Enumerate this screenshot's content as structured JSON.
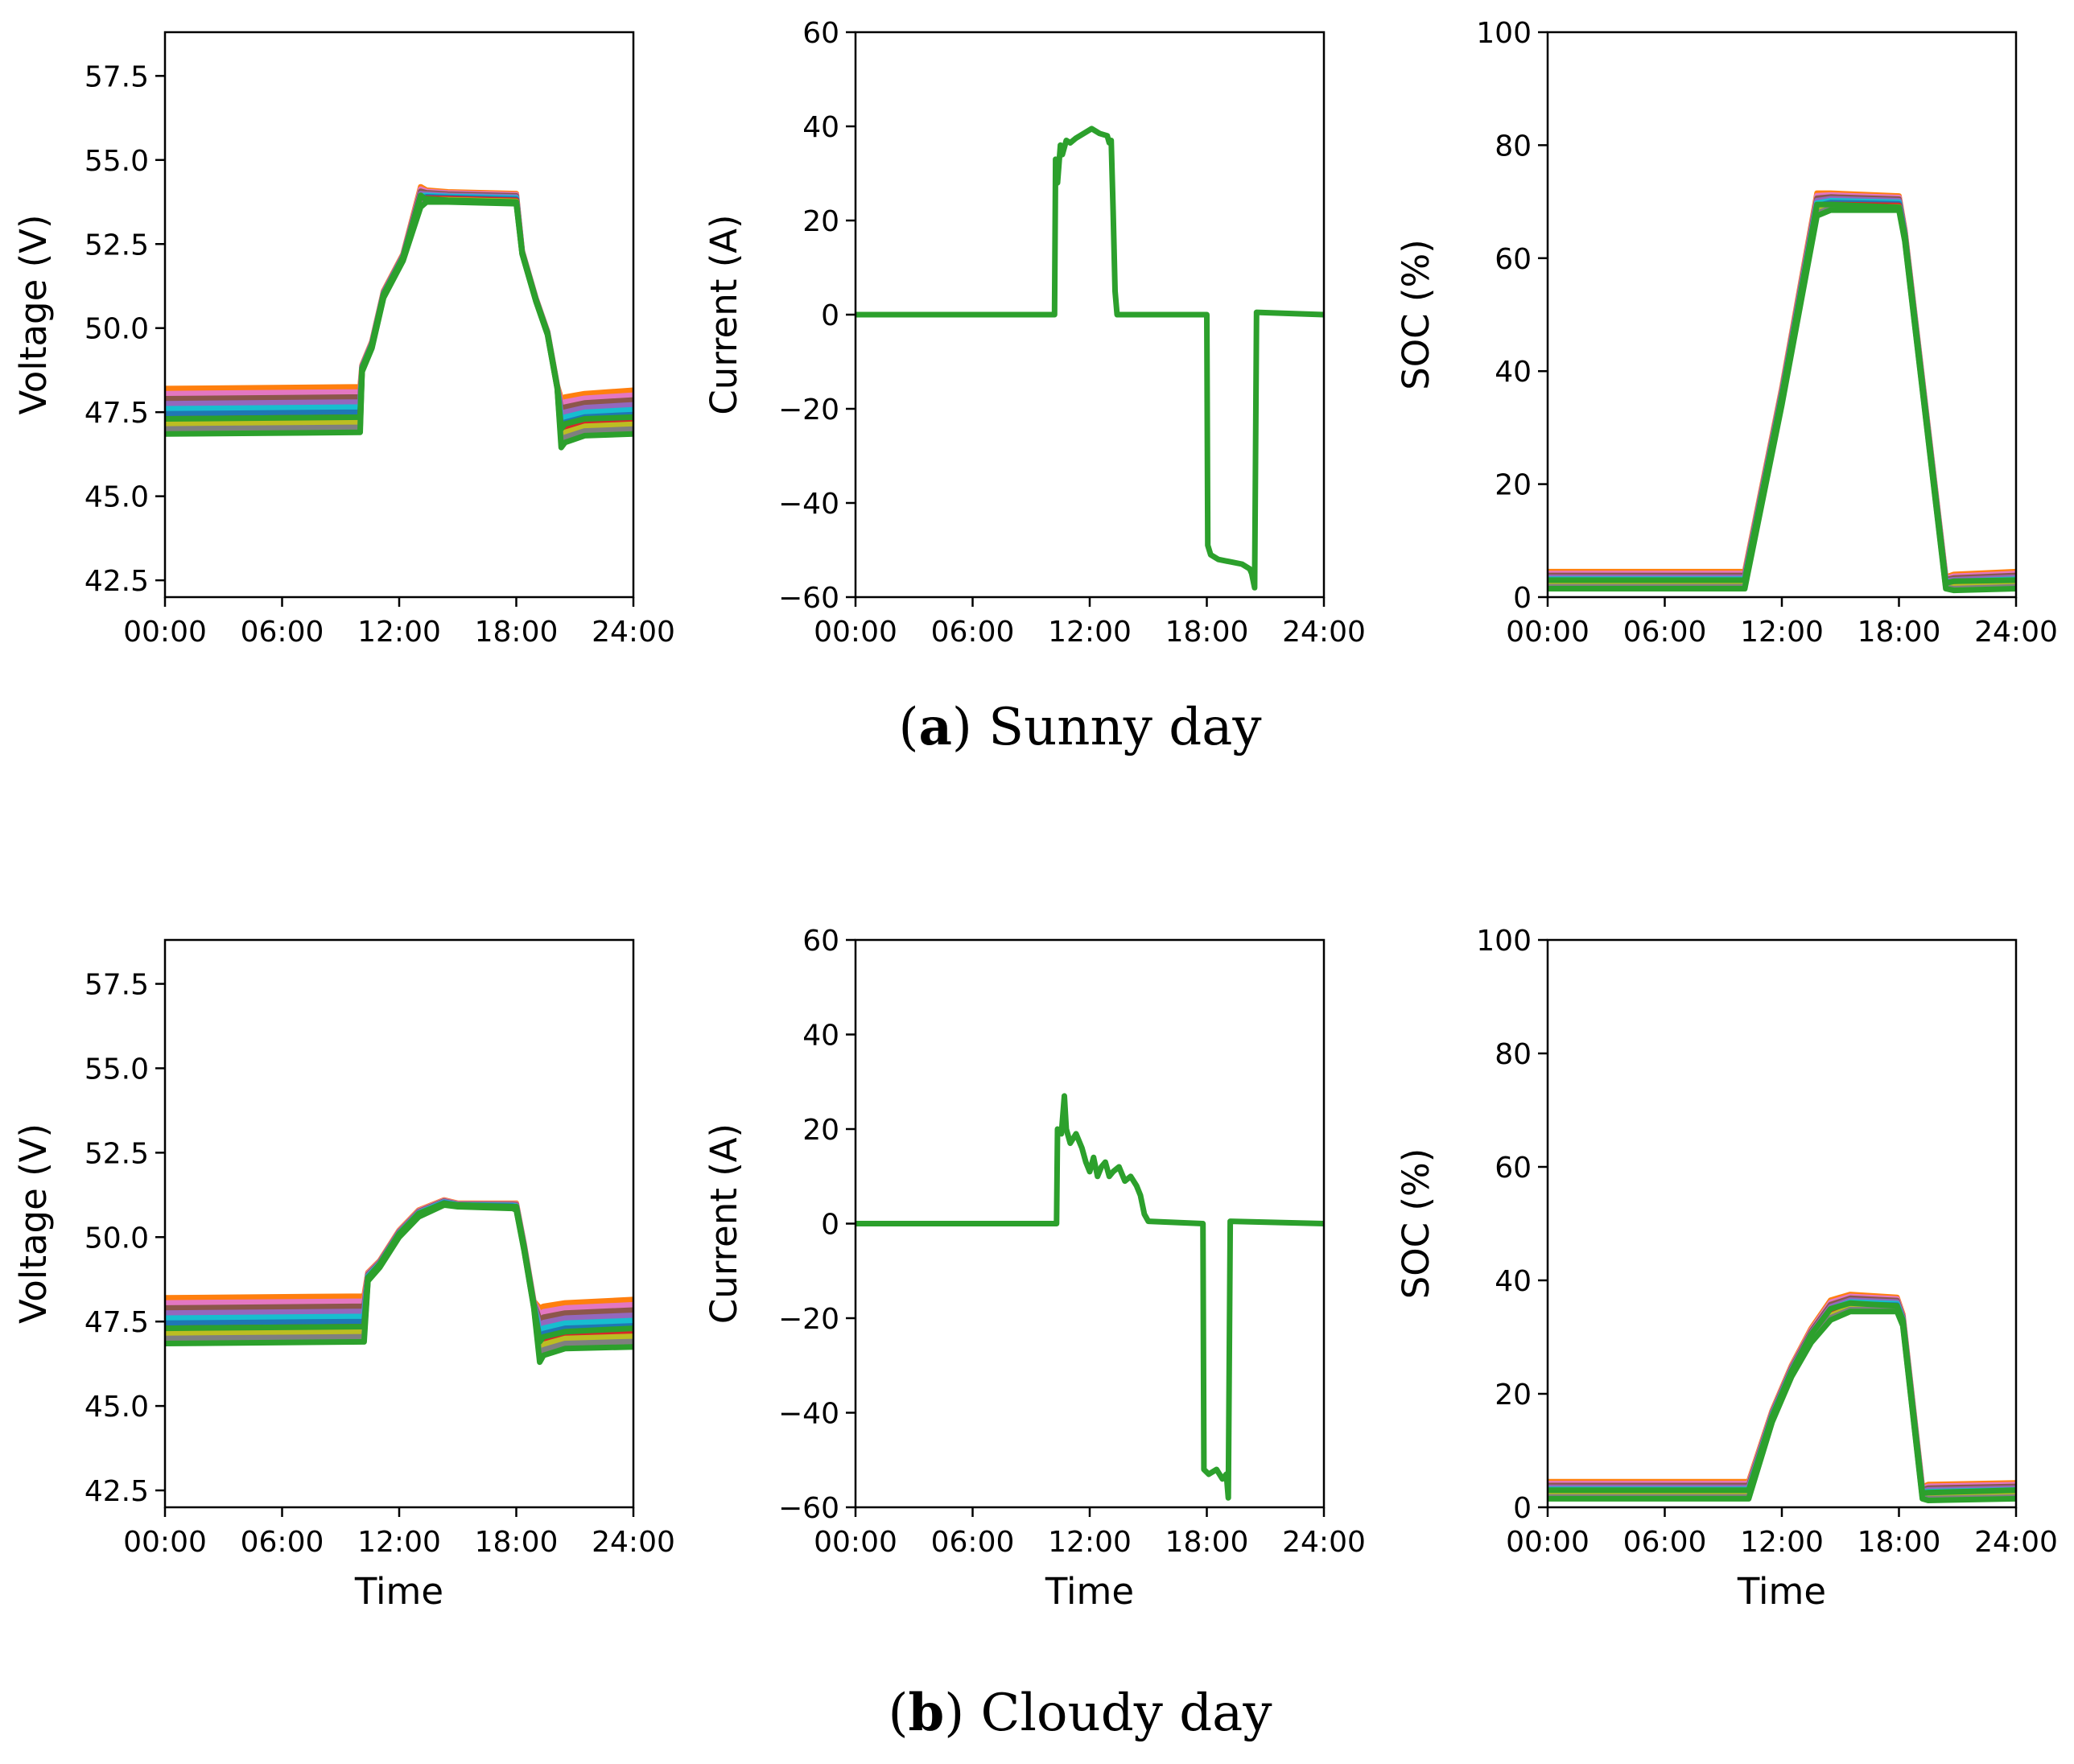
{
  "palette": [
    "#ff7f0e",
    "#e377c2",
    "#8c564b",
    "#9467bd",
    "#17becf",
    "#1f77b4",
    "#d62728",
    "#bcbd22",
    "#7f7f7f",
    "#2ca02c"
  ],
  "highlight_color": "#2ca02c",
  "chart_data": [
    {
      "panel": "a",
      "type": "line",
      "ylabel": "Voltage (V)",
      "xlabel": "",
      "xlim": [
        0,
        24
      ],
      "ylim": [
        42,
        58.8
      ],
      "yticks": [
        42.5,
        45.0,
        47.5,
        50.0,
        52.5,
        55.0,
        57.5
      ],
      "ytick_labels": [
        "42.5",
        "45.0",
        "47.5",
        "50.0",
        "52.5",
        "55.0",
        "57.5"
      ],
      "xticks": [
        0,
        6,
        12,
        18,
        24
      ],
      "xtick_labels": [
        "00:00",
        "06:00",
        "12:00",
        "18:00",
        "24:00"
      ],
      "band": {
        "x": [
          0,
          10,
          10.1,
          10.6,
          11.2,
          12.2,
          13.1,
          13.4,
          14.5,
          18.0,
          18.3,
          19.0,
          19.6,
          20.1,
          20.3,
          20.5,
          21.5,
          24
        ],
        "lower": [
          46.85,
          46.9,
          48.7,
          49.4,
          50.9,
          52.0,
          53.6,
          53.75,
          53.75,
          53.7,
          52.2,
          50.8,
          49.8,
          48.2,
          46.45,
          46.6,
          46.8,
          46.85
        ],
        "upper": [
          48.2,
          48.25,
          48.9,
          49.6,
          51.1,
          52.2,
          54.2,
          54.1,
          54.05,
          54.0,
          52.3,
          50.9,
          49.9,
          48.3,
          47.9,
          47.95,
          48.05,
          48.15
        ]
      },
      "highlight": {
        "x": [
          0,
          10,
          10.1,
          10.6,
          11.2,
          12.2,
          13.1,
          13.3,
          14.5,
          18.0,
          18.3,
          19.0,
          19.6,
          20.1,
          20.3,
          20.5,
          21.5,
          24
        ],
        "y": [
          47.3,
          47.35,
          48.8,
          49.5,
          51.0,
          52.1,
          53.95,
          53.85,
          53.8,
          53.75,
          52.25,
          50.85,
          49.85,
          48.25,
          47.0,
          47.15,
          47.3,
          47.35
        ]
      }
    },
    {
      "panel": "a",
      "type": "line",
      "ylabel": "Current (A)",
      "xlabel": "",
      "xlim": [
        0,
        24
      ],
      "ylim": [
        -60,
        60
      ],
      "yticks": [
        -60,
        -40,
        -20,
        0,
        20,
        40,
        60
      ],
      "ytick_labels": [
        "−60",
        "−40",
        "−20",
        "0",
        "20",
        "40",
        "60"
      ],
      "xticks": [
        0,
        6,
        12,
        18,
        24
      ],
      "xtick_labels": [
        "00:00",
        "06:00",
        "12:00",
        "18:00",
        "24:00"
      ],
      "highlight": {
        "x": [
          0,
          10.2,
          10.25,
          10.35,
          10.5,
          10.6,
          10.8,
          11.0,
          11.3,
          11.7,
          12.1,
          12.5,
          12.9,
          13.0,
          13.1,
          13.2,
          13.3,
          13.4,
          18.0,
          18.05,
          18.2,
          18.6,
          19.2,
          19.8,
          20.2,
          20.3,
          20.4,
          20.45,
          20.55,
          24
        ],
        "y": [
          0,
          0,
          33,
          28,
          36,
          34,
          37,
          36.5,
          37.5,
          38.5,
          39.5,
          38.5,
          38,
          36.5,
          37,
          22,
          5,
          0,
          0,
          -49,
          -51,
          -52,
          -52.5,
          -53,
          -54,
          -55,
          -57,
          -58,
          0.5,
          0
        ]
      }
    },
    {
      "panel": "a",
      "type": "line",
      "ylabel": "SOC (%)",
      "xlabel": "",
      "xlim": [
        0,
        24
      ],
      "ylim": [
        0,
        100
      ],
      "yticks": [
        0,
        20,
        40,
        60,
        80,
        100
      ],
      "ytick_labels": [
        "0",
        "20",
        "40",
        "60",
        "80",
        "100"
      ],
      "xticks": [
        0,
        6,
        12,
        18,
        24
      ],
      "xtick_labels": [
        "00:00",
        "06:00",
        "12:00",
        "18:00",
        "24:00"
      ],
      "band": {
        "x": [
          0,
          10.1,
          12.0,
          13.8,
          14.5,
          18.0,
          18.3,
          20.4,
          20.8,
          24
        ],
        "lower": [
          1.5,
          1.5,
          34,
          67.5,
          68.5,
          68.5,
          63,
          1.5,
          1.2,
          1.5
        ],
        "upper": [
          4.5,
          4.5,
          37,
          71.5,
          71.5,
          71,
          65,
          3.5,
          4,
          4.5
        ]
      },
      "highlight": {
        "x": [
          0,
          10.1,
          12.0,
          13.8,
          14.5,
          18.0,
          18.3,
          20.4,
          20.8,
          24
        ],
        "y": [
          3,
          3,
          35.5,
          69.5,
          69.5,
          69,
          64,
          2.5,
          2.8,
          3
        ]
      }
    },
    {
      "panel": "b",
      "type": "line",
      "ylabel": "Voltage (V)",
      "xlabel": "Time",
      "xlim": [
        0,
        24
      ],
      "ylim": [
        42,
        58.8
      ],
      "yticks": [
        42.5,
        45.0,
        47.5,
        50.0,
        52.5,
        55.0,
        57.5
      ],
      "ytick_labels": [
        "42.5",
        "45.0",
        "47.5",
        "50.0",
        "52.5",
        "55.0",
        "57.5"
      ],
      "xticks": [
        0,
        6,
        12,
        18,
        24
      ],
      "xtick_labels": [
        "00:00",
        "06:00",
        "12:00",
        "18:00",
        "24:00"
      ],
      "band": {
        "x": [
          0,
          10.2,
          10.4,
          11.0,
          12.0,
          13.0,
          14.3,
          15.0,
          17.8,
          18.0,
          18.4,
          18.9,
          19.2,
          19.4,
          20.5,
          24
        ],
        "lower": [
          46.85,
          46.9,
          48.7,
          49.1,
          50.0,
          50.6,
          50.95,
          50.9,
          50.85,
          50.8,
          49.6,
          47.9,
          46.3,
          46.5,
          46.7,
          46.75
        ],
        "upper": [
          48.2,
          48.25,
          48.95,
          49.3,
          50.2,
          50.8,
          51.1,
          51.0,
          51.0,
          51.0,
          49.8,
          48.1,
          47.9,
          47.95,
          48.05,
          48.15
        ]
      },
      "highlight": {
        "x": [
          0,
          10.2,
          10.4,
          11.0,
          12.0,
          13.0,
          14.3,
          15.0,
          17.8,
          18.0,
          18.4,
          18.9,
          19.2,
          19.4,
          20.5,
          24
        ],
        "y": [
          47.3,
          47.35,
          48.8,
          49.2,
          50.1,
          50.7,
          51.0,
          50.95,
          50.9,
          50.9,
          49.7,
          48.0,
          46.9,
          47.05,
          47.2,
          47.3
        ]
      }
    },
    {
      "panel": "b",
      "type": "line",
      "ylabel": "Current (A)",
      "xlabel": "Time",
      "xlim": [
        0,
        24
      ],
      "ylim": [
        -60,
        60
      ],
      "yticks": [
        -60,
        -40,
        -20,
        0,
        20,
        40,
        60
      ],
      "ytick_labels": [
        "−60",
        "−40",
        "−20",
        "0",
        "20",
        "40",
        "60"
      ],
      "xticks": [
        0,
        6,
        12,
        18,
        24
      ],
      "xtick_labels": [
        "00:00",
        "06:00",
        "12:00",
        "18:00",
        "24:00"
      ],
      "highlight": {
        "x": [
          0,
          10.3,
          10.35,
          10.55,
          10.7,
          10.8,
          11.0,
          11.3,
          11.6,
          11.8,
          12.0,
          12.2,
          12.4,
          12.6,
          12.8,
          13.0,
          13.2,
          13.5,
          13.8,
          14.1,
          14.4,
          14.6,
          14.8,
          15.0,
          17.8,
          17.85,
          18.1,
          18.5,
          18.8,
          19.0,
          19.1,
          19.2,
          24
        ],
        "y": [
          0,
          0,
          20,
          19,
          27,
          20,
          17,
          19,
          16,
          13,
          11,
          14,
          10,
          12,
          13,
          10,
          11,
          12,
          9,
          10,
          8,
          6,
          2,
          0.5,
          0,
          -52,
          -53,
          -52,
          -54,
          -53,
          -58,
          0.5,
          0
        ]
      }
    },
    {
      "panel": "b",
      "type": "line",
      "ylabel": "SOC (%)",
      "xlabel": "Time",
      "xlim": [
        0,
        24
      ],
      "ylim": [
        0,
        100
      ],
      "yticks": [
        0,
        20,
        40,
        60,
        80,
        100
      ],
      "ytick_labels": [
        "0",
        "20",
        "40",
        "60",
        "80",
        "100"
      ],
      "xticks": [
        0,
        6,
        12,
        18,
        24
      ],
      "xtick_labels": [
        "00:00",
        "06:00",
        "12:00",
        "18:00",
        "24:00"
      ],
      "band": {
        "x": [
          0,
          10.3,
          11.5,
          12.5,
          13.5,
          14.5,
          15.5,
          17.9,
          18.2,
          19.2,
          19.5,
          24
        ],
        "lower": [
          1.5,
          1.5,
          15,
          23,
          29,
          33,
          34.5,
          34.5,
          32,
          1.5,
          1.2,
          1.5
        ],
        "upper": [
          4.5,
          4.5,
          17,
          25,
          31.5,
          36.5,
          37.5,
          37,
          34,
          3.5,
          4,
          4.3
        ]
      },
      "highlight": {
        "x": [
          0,
          10.3,
          11.5,
          12.5,
          13.5,
          14.5,
          15.5,
          17.9,
          18.2,
          19.2,
          19.5,
          24
        ],
        "y": [
          3,
          3,
          16,
          24,
          30.5,
          35,
          36,
          35.5,
          33,
          2.5,
          2.6,
          3
        ]
      }
    }
  ],
  "captions": {
    "a": {
      "letter": "a",
      "text": " Sunny day"
    },
    "b": {
      "letter": "b",
      "text": " Cloudy day"
    }
  }
}
